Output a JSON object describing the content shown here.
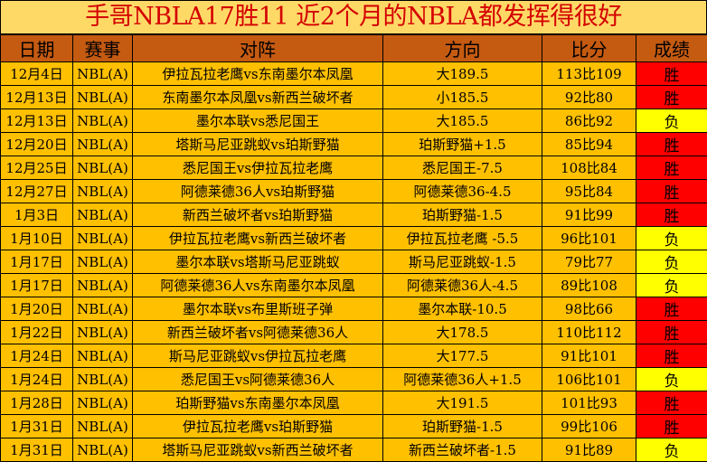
{
  "title": "手哥NBLA17胜11  近2个月的NBLA都发挥得很好",
  "colors": {
    "title_bg": "#ffd966",
    "title_text": "#d40000",
    "header_bg": "#c55a11",
    "row_bg": "#ffc000",
    "win": "#ff0000",
    "loss": "#ffff00"
  },
  "headers": [
    "日期",
    "赛事",
    "对阵",
    "方向",
    "比分",
    "成绩"
  ],
  "rows": [
    [
      "12月4日",
      "NBL(A)",
      "伊拉瓦拉老鹰vs东南墨尔本凤凰",
      "大189.5",
      "113比109",
      "胜"
    ],
    [
      "12月13日",
      "NBL(A)",
      "东南墨尔本凤凰vs新西兰破坏者",
      "小185.5",
      "92比80",
      "胜"
    ],
    [
      "12月13日",
      "NBL(A)",
      "墨尔本联vs悉尼国王",
      "大185.5",
      "86比92",
      "负"
    ],
    [
      "12月20日",
      "NBL(A)",
      "塔斯马尼亚跳蚁vs珀斯野猫",
      "珀斯野猫+1.5",
      "85比94",
      "胜"
    ],
    [
      "12月25日",
      "NBL(A)",
      "悉尼国王vs伊拉瓦拉老鹰",
      "悉尼国王-7.5",
      "108比84",
      "胜"
    ],
    [
      "12月27日",
      "NBL(A)",
      "阿德莱德36人vs珀斯野猫",
      "阿德莱德36-4.5",
      "95比84",
      "胜"
    ],
    [
      "1月3日",
      "NBL(A)",
      "新西兰破坏者vs珀斯野猫",
      "珀斯野猫-1.5",
      "91比99",
      "胜"
    ],
    [
      "1月10日",
      "NBL(A)",
      "伊拉瓦拉老鹰vs新西兰破坏者",
      "伊拉瓦拉老鹰 -5.5",
      "96比101",
      "负"
    ],
    [
      "1月17日",
      "NBL(A)",
      "墨尔本联vs塔斯马尼亚跳蚁",
      "斯马尼亚跳蚁-1.5",
      "79比77",
      "负"
    ],
    [
      "1月17日",
      "NBL(A)",
      "阿德莱德36人vs东南墨尔本凤凰",
      "阿德莱德36人-4.5",
      "89比108",
      "负"
    ],
    [
      "1月20日",
      "NBL(A)",
      "墨尔本联vs布里斯班子弹",
      "墨尔本联-10.5",
      "98比66",
      "胜"
    ],
    [
      "1月22日",
      "NBL(A)",
      "新西兰破坏者vs阿德莱德36人",
      "大178.5",
      "110比112",
      "胜"
    ],
    [
      "1月24日",
      "NBL(A)",
      "斯马尼亚跳蚁vs伊拉瓦拉老鹰",
      "大177.5",
      "91比101",
      "胜"
    ],
    [
      "1月24日",
      "NBL(A)",
      "悉尼国王vs阿德莱德36人",
      "阿德莱德36人+1.5",
      "106比101",
      "负"
    ],
    [
      "1月28日",
      "NBL(A)",
      "珀斯野猫vs东南墨尔本凤凰",
      "大191.5",
      "101比93",
      "胜"
    ],
    [
      "1月31日",
      "NBL(A)",
      "伊拉瓦拉老鹰vs珀斯野猫",
      "珀斯野猫-1.5",
      "99比106",
      "胜"
    ],
    [
      "1月31日",
      "NBL(A)",
      "塔斯马尼亚跳蚁vs新西兰破坏者",
      "新西兰破坏者-1.5",
      "91比89",
      "负"
    ]
  ]
}
